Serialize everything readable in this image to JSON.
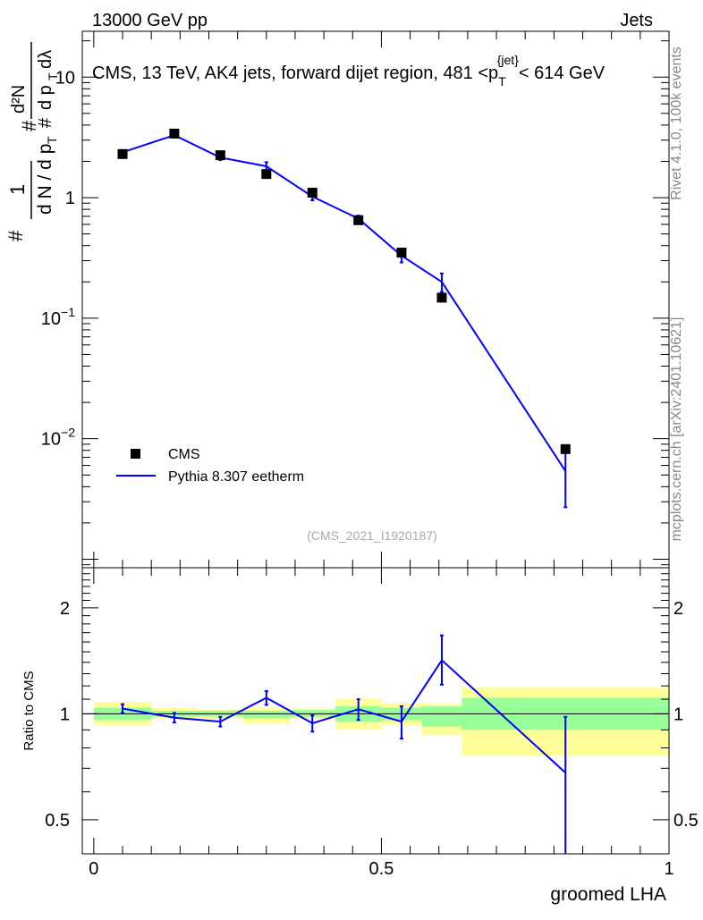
{
  "header": {
    "left": "13000 GeV pp",
    "right": "Jets"
  },
  "side": {
    "rivet": "Rivet 4.1.0,  100k events",
    "mcplots": "mcplots.cern.ch [arXiv:2401.10621]"
  },
  "chart_data": [
    {
      "type": "scatter",
      "title_main": "CMS, 13 TeV, AK4 jets, forward dijet region, 481 <p",
      "title_sub": "T",
      "title_sup": "{jet}",
      "title_end": "< 614 GeV",
      "ylabel": {
        "hash": "#",
        "one": "1",
        "dN": "d N / d p",
        "T": "T",
        "frac2_num": "d²N",
        "frac2_den": "d p",
        "frac2_den_sub": "T",
        "frac2_den_end": "dλ",
        "hash2": "#",
        "hash3": "#"
      },
      "yscale": "log",
      "ylim": [
        0.00085,
        24
      ],
      "xlim": [
        -0.02,
        1.0
      ],
      "yticks": [
        {
          "value": 10,
          "base": "10",
          "exp": ""
        },
        {
          "value": 1,
          "base": "1",
          "exp": ""
        },
        {
          "value": 0.1,
          "base": "10",
          "exp": "−1"
        },
        {
          "value": 0.01,
          "base": "10",
          "exp": "−2"
        }
      ],
      "watermark": "(CMS_2021_I1920187)",
      "legend": [
        {
          "label": "CMS",
          "marker": "square",
          "color": "#000000"
        },
        {
          "label": "Pythia 8.307 eetherm",
          "marker": "line",
          "color": "#0000ff"
        }
      ],
      "series": [
        {
          "name": "CMS",
          "color": "#000000",
          "x": [
            0.05,
            0.14,
            0.22,
            0.3,
            0.38,
            0.46,
            0.535,
            0.605,
            0.82
          ],
          "y": [
            2.3,
            3.4,
            2.25,
            1.57,
            1.1,
            0.65,
            0.35,
            0.148,
            0.0082
          ]
        },
        {
          "name": "Pythia 8.307 eetherm",
          "color": "#0000ff",
          "x": [
            0.05,
            0.14,
            0.22,
            0.3,
            0.38,
            0.46,
            0.535,
            0.605,
            0.82
          ],
          "y": [
            2.38,
            3.3,
            2.15,
            1.82,
            1.02,
            0.67,
            0.33,
            0.2,
            0.0054
          ],
          "yerr_lo": [
            0.07,
            0.1,
            0.1,
            0.15,
            0.07,
            0.04,
            0.04,
            0.035,
            0.0027
          ],
          "yerr_hi": [
            0.07,
            0.1,
            0.1,
            0.15,
            0.07,
            0.04,
            0.04,
            0.035,
            0.0026
          ]
        }
      ]
    },
    {
      "type": "ratio",
      "ylabel": "Ratio to CMS",
      "xlabel": "groomed LHA",
      "yscale": "log",
      "ylim": [
        0.4,
        2.6
      ],
      "xlim": [
        -0.02,
        1.0
      ],
      "xticks": [
        {
          "value": 0,
          "label": "0"
        },
        {
          "value": 0.5,
          "label": "0.5"
        },
        {
          "value": 1,
          "label": "1"
        }
      ],
      "yticks": [
        {
          "value": 2,
          "label": "2"
        },
        {
          "value": 1,
          "label": "1"
        },
        {
          "value": 0.5,
          "label": "0.5"
        }
      ],
      "bands": [
        {
          "x0": 0.0,
          "x1": 0.1,
          "g_lo": 0.96,
          "g_hi": 1.04,
          "y_lo": 0.93,
          "y_hi": 1.08
        },
        {
          "x0": 0.1,
          "x1": 0.18,
          "g_lo": 0.98,
          "g_hi": 1.02,
          "y_lo": 0.97,
          "y_hi": 1.04
        },
        {
          "x0": 0.18,
          "x1": 0.26,
          "g_lo": 0.985,
          "g_hi": 1.02,
          "y_lo": 0.97,
          "y_hi": 1.03
        },
        {
          "x0": 0.26,
          "x1": 0.34,
          "g_lo": 0.97,
          "g_hi": 1.02,
          "y_lo": 0.94,
          "y_hi": 1.04
        },
        {
          "x0": 0.34,
          "x1": 0.42,
          "g_lo": 0.98,
          "g_hi": 1.025,
          "y_lo": 0.97,
          "y_hi": 1.035
        },
        {
          "x0": 0.42,
          "x1": 0.5,
          "g_lo": 0.95,
          "g_hi": 1.05,
          "y_lo": 0.9,
          "y_hi": 1.1
        },
        {
          "x0": 0.5,
          "x1": 0.57,
          "g_lo": 0.96,
          "g_hi": 1.04,
          "y_lo": 0.93,
          "y_hi": 1.07
        },
        {
          "x0": 0.57,
          "x1": 0.64,
          "g_lo": 0.92,
          "g_hi": 1.05,
          "y_lo": 0.87,
          "y_hi": 1.07
        },
        {
          "x0": 0.64,
          "x1": 1.0,
          "g_lo": 0.9,
          "g_hi": 1.11,
          "y_lo": 0.76,
          "y_hi": 1.19
        }
      ],
      "series": [
        {
          "name": "Pythia 8.307 eetherm / CMS",
          "color": "#0000ff",
          "x": [
            0.05,
            0.14,
            0.22,
            0.3,
            0.38,
            0.46,
            0.535,
            0.605,
            0.82
          ],
          "y": [
            1.035,
            0.975,
            0.95,
            1.11,
            0.94,
            1.03,
            0.95,
            1.42,
            0.68
          ],
          "yerr_lo": [
            0.03,
            0.03,
            0.03,
            0.05,
            0.05,
            0.07,
            0.1,
            0.21,
            0.3
          ],
          "yerr_hi": [
            0.03,
            0.03,
            0.03,
            0.05,
            0.05,
            0.07,
            0.1,
            0.25,
            0.3
          ]
        }
      ]
    }
  ]
}
